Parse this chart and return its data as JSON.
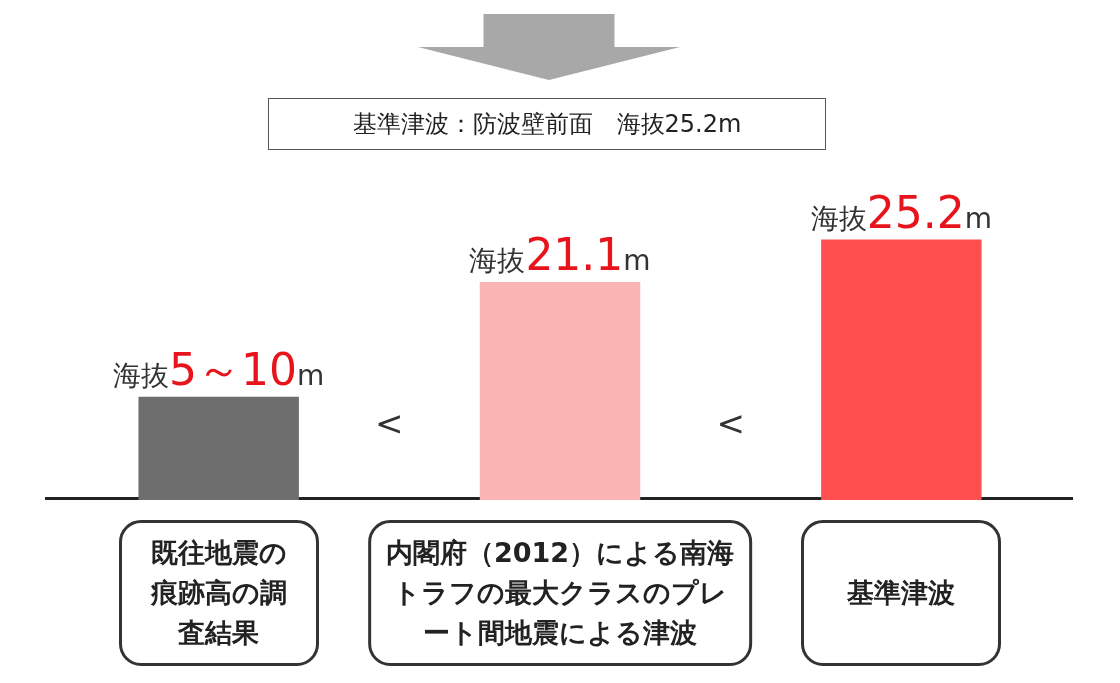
{
  "chart_data": {
    "type": "bar",
    "title": "基準津波：防波壁前面　海抜25.2m",
    "categories": [
      "既往地震の痕跡高の調査結果",
      "内閣府（2012）による南海トラフの最大クラスのプレート間地震による津波",
      "基準津波"
    ],
    "values": [
      10,
      21.1,
      25.2
    ],
    "colors": [
      "#6e6e6e",
      "#fbb4b4",
      "#ff4f4f"
    ],
    "value_labels": [
      "5～10",
      "21.1",
      "25.2"
    ],
    "annotations": [
      "<",
      "<",
      {
        "text": "海抜",
        "x": "既往地震の痕跡高の調査結果",
        "y": 10
      },
      {
        "text": "m",
        "x": "既往地震の痕跡高の調査結果",
        "y": 10
      },
      {
        "text": "海抜",
        "x": "内閣府（2012）による南海トラフの最大クラスのプレート間地震による津波",
        "y": 21.1
      },
      {
        "text": "m",
        "x": "内閣府（2012）による南海トラフの最大クラスのプレート間地震による津波",
        "y": 21.1
      },
      {
        "text": "海抜",
        "x": "基準津波",
        "y": 25.2
      },
      {
        "text": "m",
        "x": "基準津波",
        "y": 25.2
      }
    ],
    "grid": false,
    "legend": false
  }
}
